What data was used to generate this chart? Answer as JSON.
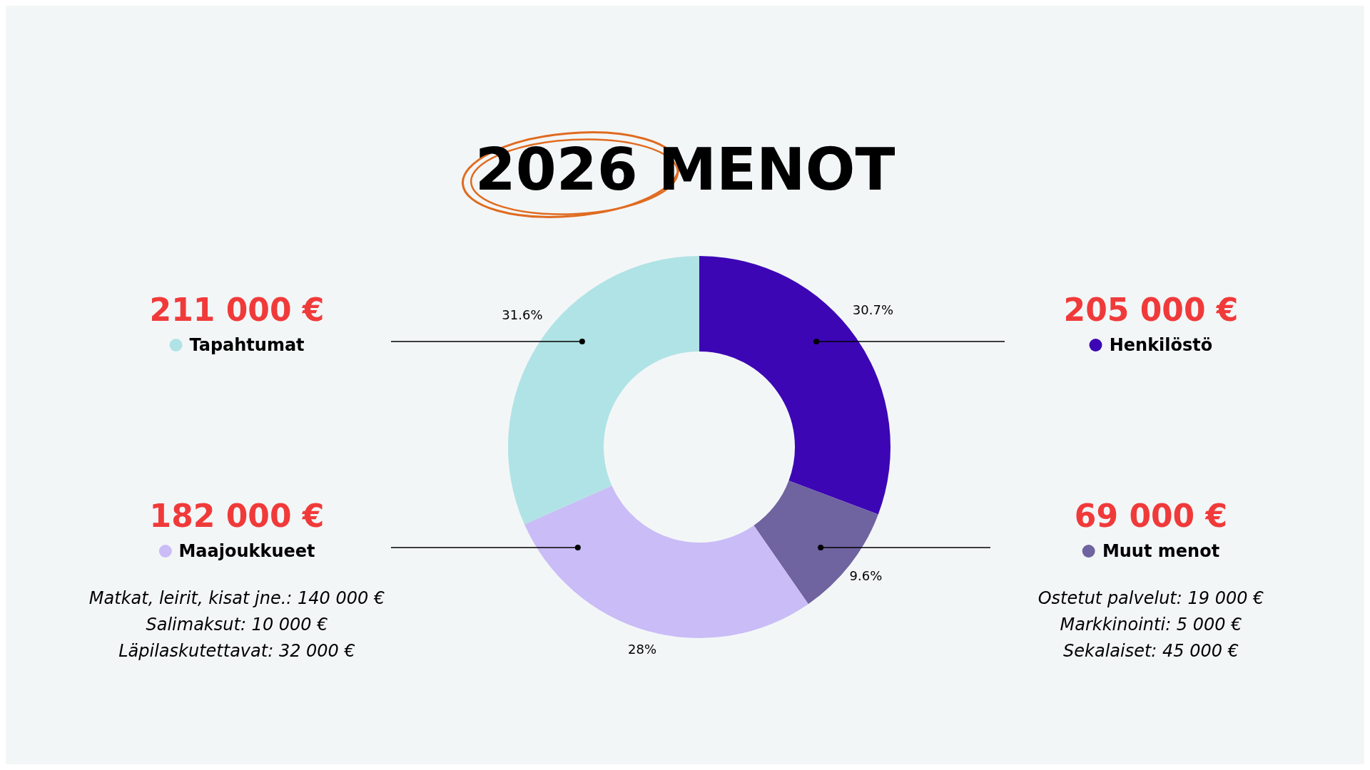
{
  "chart_data": {
    "type": "donut",
    "title": "2026 MENOT",
    "categories": [
      "Henkilöstö",
      "Muut menot",
      "Maajoukkueet",
      "Tapahtumat"
    ],
    "values": [
      30.7,
      9.6,
      28,
      31.6
    ],
    "value_labels": [
      "30.7%",
      "9.6%",
      "28%",
      "31.6%"
    ],
    "colors": [
      "#3c06b5",
      "#6f63a0",
      "#cabcf7",
      "#b0e3e5"
    ],
    "legend": "right",
    "annotations": [
      "205 000 €",
      "69 000 €",
      "182 000 €",
      "211 000 €",
      "Matkat, leirit, kisat jne.: 140 000 €",
      "Salimaksut: 10 000 €",
      "Läpilaskutettavat: 32 000 €",
      "Ostetut palvelut: 19 000 €",
      "Markkinointi: 5 000 €",
      "Sekalaiset: 45 000 €"
    ]
  }
}
